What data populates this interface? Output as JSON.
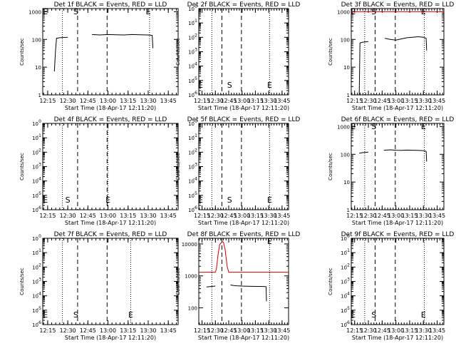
{
  "x_tick_labels": [
    "12:15",
    "12:30",
    "12:45",
    "13:00",
    "13:15",
    "13:30",
    "13:45"
  ],
  "xlabel": "Start Time (18-Apr-17 12:11:20)",
  "ylabel": "Counts/sec",
  "colors": {
    "events": "#000000",
    "lld": "#cc0000"
  },
  "chart_data": [
    {
      "type": "line",
      "title": "Det 1f BLACK = Events, RED = LLD",
      "xlabel": "Start Time (18-Apr-17 12:11:20)",
      "ylabel": "Counts/sec",
      "x_tick_labels": [
        "12:15",
        "12:30",
        "12:45",
        "13:00",
        "13:15",
        "13:30",
        "13:45"
      ],
      "xlim": [
        12.1889,
        13.8722
      ],
      "y_scale": "log",
      "y_ticks": [
        {
          "label": "1",
          "v": 1
        },
        {
          "label": "10",
          "v": 10
        },
        {
          "label": "100",
          "v": 100
        },
        {
          "label": "1000",
          "v": 1000
        }
      ],
      "ylim": [
        1,
        1300
      ],
      "markers": {
        "E": 12.2222,
        "S": 12.6,
        "E2": 13.5
      },
      "dotted": [
        12.4333,
        13.5167
      ],
      "dashed": [
        12.6222,
        12.9889
      ],
      "series": [
        {
          "name": "events",
          "color": "#000000",
          "segments": [
            [
              [
                12.3333,
                7
              ],
              [
                12.3467,
                35
              ],
              [
                12.36,
                110
              ],
              [
                12.4,
                115
              ],
              [
                12.45,
                118
              ],
              [
                12.5,
                120
              ]
            ],
            [
              [
                12.8,
                150
              ],
              [
                12.9,
                145
              ],
              [
                13.0,
                150
              ],
              [
                13.1,
                148
              ],
              [
                13.2,
                145
              ],
              [
                13.3,
                150
              ],
              [
                13.4,
                148
              ],
              [
                13.5,
                145
              ],
              [
                13.55,
                140
              ],
              [
                13.5583,
                48
              ]
            ]
          ]
        },
        {
          "name": "lld",
          "color": "#cc0000",
          "segments": []
        }
      ]
    },
    {
      "type": "line",
      "title": "Det 2f BLACK = Events, RED = LLD",
      "xlabel": "Start Time (18-Apr-17 12:11:20)",
      "ylabel": "Counts/sec",
      "x_tick_labels": [
        "12:15",
        "12:30",
        "12:45",
        "13:00",
        "13:15",
        "13:30",
        "13:45"
      ],
      "xlim": [
        12.1889,
        13.8722
      ],
      "y_scale": "log",
      "y_ticks": [
        {
          "label": "10",
          "sup": "0",
          "v": 1
        },
        {
          "label": "10",
          "sup": "-1",
          "v": 0.1
        },
        {
          "label": "10",
          "sup": "-2",
          "v": 0.01
        },
        {
          "label": "10",
          "sup": "-3",
          "v": 0.001
        },
        {
          "label": "10",
          "sup": "-4",
          "v": 0.0001
        },
        {
          "label": "10",
          "sup": "-5",
          "v": 1e-05
        },
        {
          "label": "10",
          "sup": "-6",
          "v": 1e-06
        }
      ],
      "ylim": [
        1e-06,
        1
      ],
      "markers": {
        "E": 12.2222,
        "S": 12.7667,
        "E2": 13.5167
      },
      "dotted": [
        12.4333,
        13.5167
      ],
      "dashed": [
        12.6222,
        12.9889
      ],
      "series": [
        {
          "name": "events",
          "color": "#000000",
          "segments": []
        },
        {
          "name": "lld",
          "color": "#cc0000",
          "segments": []
        }
      ]
    },
    {
      "type": "line",
      "title": "Det 3f BLACK = Events, RED = LLD",
      "xlabel": "Start Time (18-Apr-17 12:11:20)",
      "ylabel": "Counts/sec",
      "x_tick_labels": [
        "12:15",
        "12:30",
        "12:45",
        "13:00",
        "13:15",
        "13:30",
        "13:45"
      ],
      "xlim": [
        12.1889,
        13.8722
      ],
      "y_scale": "log",
      "y_ticks": [
        {
          "label": "1",
          "v": 1
        },
        {
          "label": "10",
          "v": 10
        },
        {
          "label": "100",
          "v": 100
        },
        {
          "label": "1000",
          "v": 1000
        }
      ],
      "ylim": [
        1,
        1300
      ],
      "markers": {
        "E": 12.2222,
        "S": 12.6,
        "E2": 13.5
      },
      "dotted": [
        12.4333,
        13.5167
      ],
      "dashed": [
        12.6222,
        12.9889
      ],
      "series": [
        {
          "name": "events",
          "color": "#000000",
          "segments": [
            [
              [
                12.3333,
                1
              ],
              [
                12.3467,
                75
              ],
              [
                12.4,
                80
              ],
              [
                12.45,
                82
              ],
              [
                12.5,
                84
              ]
            ],
            [
              [
                12.8,
                110
              ],
              [
                12.9,
                100
              ],
              [
                13.0,
                95
              ],
              [
                13.1,
                105
              ],
              [
                13.2,
                115
              ],
              [
                13.3,
                120
              ],
              [
                13.4,
                125
              ],
              [
                13.5,
                120
              ],
              [
                13.55,
                110
              ],
              [
                13.5583,
                40
              ]
            ]
          ]
        },
        {
          "name": "lld",
          "color": "#cc0000",
          "segments": [
            [
              [
                12.1889,
                1000
              ],
              [
                13.8722,
                1000
              ]
            ]
          ]
        }
      ]
    },
    {
      "type": "line",
      "title": "Det 4f BLACK = Events, RED = LLD",
      "xlabel": "Start Time (18-Apr-17 12:11:20)",
      "ylabel": "Counts/sec",
      "x_tick_labels": [
        "12:15",
        "12:30",
        "12:45",
        "13:00",
        "13:15",
        "13:30",
        "13:45"
      ],
      "xlim": [
        12.1889,
        13.8722
      ],
      "y_scale": "log",
      "y_ticks": [
        {
          "label": "10",
          "sup": "0",
          "v": 1
        },
        {
          "label": "10",
          "sup": "-1",
          "v": 0.1
        },
        {
          "label": "10",
          "sup": "-2",
          "v": 0.01
        },
        {
          "label": "10",
          "sup": "-3",
          "v": 0.001
        },
        {
          "label": "10",
          "sup": "-4",
          "v": 0.0001
        },
        {
          "label": "10",
          "sup": "-5",
          "v": 1e-05
        },
        {
          "label": "10",
          "sup": "-6",
          "v": 1e-06
        }
      ],
      "ylim": [
        1e-06,
        1
      ],
      "markers": {
        "E": 12.2222,
        "S": 12.5,
        "E2": 13.0
      },
      "dotted": [
        12.4333,
        13.0
      ],
      "dashed": [
        12.6222,
        12.9889
      ],
      "series": [
        {
          "name": "events",
          "color": "#000000",
          "segments": []
        },
        {
          "name": "lld",
          "color": "#cc0000",
          "segments": []
        }
      ]
    },
    {
      "type": "line",
      "title": "Det 5f BLACK = Events, RED = LLD",
      "xlabel": "Start Time (18-Apr-17 12:11:20)",
      "ylabel": "Counts/sec",
      "x_tick_labels": [
        "12:15",
        "12:30",
        "12:45",
        "13:00",
        "13:15",
        "13:30",
        "13:45"
      ],
      "xlim": [
        12.1889,
        13.8722
      ],
      "y_scale": "log",
      "y_ticks": [
        {
          "label": "10",
          "sup": "0",
          "v": 1
        },
        {
          "label": "10",
          "sup": "-1",
          "v": 0.1
        },
        {
          "label": "10",
          "sup": "-2",
          "v": 0.01
        },
        {
          "label": "10",
          "sup": "-3",
          "v": 0.001
        },
        {
          "label": "10",
          "sup": "-4",
          "v": 0.0001
        },
        {
          "label": "10",
          "sup": "-5",
          "v": 1e-05
        },
        {
          "label": "10",
          "sup": "-6",
          "v": 1e-06
        }
      ],
      "ylim": [
        1e-06,
        1
      ],
      "markers": {
        "E": 12.2222,
        "S": 12.7667,
        "E2": 13.5167
      },
      "dotted": [
        12.4333,
        13.5167
      ],
      "dashed": [
        12.6222,
        12.9889
      ],
      "series": [
        {
          "name": "events",
          "color": "#000000",
          "segments": []
        },
        {
          "name": "lld",
          "color": "#cc0000",
          "segments": []
        }
      ]
    },
    {
      "type": "line",
      "title": "Det 6f BLACK = Events, RED = LLD",
      "xlabel": "Start Time (18-Apr-17 12:11:20)",
      "ylabel": "Counts/sec",
      "x_tick_labels": [
        "12:15",
        "12:30",
        "12:45",
        "13:00",
        "13:15",
        "13:30",
        "13:45"
      ],
      "xlim": [
        12.1889,
        13.8722
      ],
      "y_scale": "log",
      "y_ticks": [
        {
          "label": "1",
          "v": 1
        },
        {
          "label": "10",
          "v": 10
        },
        {
          "label": "100",
          "v": 100
        },
        {
          "label": "1000",
          "v": 1000
        }
      ],
      "ylim": [
        1,
        1300
      ],
      "markers": {
        "E": 12.2222,
        "S": 12.6,
        "E2": 13.5
      },
      "dotted": [
        12.4333,
        13.5167
      ],
      "dashed": [
        12.6222,
        12.9889
      ],
      "series": [
        {
          "name": "events",
          "color": "#000000",
          "segments": [
            [
              [
                12.3333,
                110
              ],
              [
                12.4,
                115
              ],
              [
                12.45,
                118
              ],
              [
                12.5,
                120
              ]
            ],
            [
              [
                12.7833,
                140
              ],
              [
                12.9,
                145
              ],
              [
                13.0,
                140
              ],
              [
                13.1,
                138
              ],
              [
                13.2,
                142
              ],
              [
                13.3,
                140
              ],
              [
                13.4,
                138
              ],
              [
                13.5,
                135
              ],
              [
                13.55,
                128
              ],
              [
                13.5583,
                55
              ]
            ]
          ]
        },
        {
          "name": "lld",
          "color": "#cc0000",
          "segments": []
        }
      ]
    },
    {
      "type": "line",
      "title": "Det 7f BLACK = Events, RED = LLD",
      "xlabel": "Start Time (18-Apr-17 12:11:20)",
      "ylabel": "Counts/sec",
      "x_tick_labels": [
        "12:15",
        "12:30",
        "12:45",
        "13:00",
        "13:15",
        "13:30",
        "13:45"
      ],
      "xlim": [
        12.1889,
        13.8722
      ],
      "y_scale": "log",
      "y_ticks": [
        {
          "label": "10",
          "sup": "0",
          "v": 1
        },
        {
          "label": "10",
          "sup": "-1",
          "v": 0.1
        },
        {
          "label": "10",
          "sup": "-2",
          "v": 0.01
        },
        {
          "label": "10",
          "sup": "-3",
          "v": 0.001
        },
        {
          "label": "10",
          "sup": "-4",
          "v": 0.0001
        },
        {
          "label": "10",
          "sup": "-5",
          "v": 1e-05
        },
        {
          "label": "10",
          "sup": "-6",
          "v": 1e-06
        }
      ],
      "ylim": [
        1e-06,
        1
      ],
      "markers": {
        "E": 12.2222,
        "S": 12.6,
        "E2": 13.2833
      },
      "dotted": [
        12.4333,
        13.2833
      ],
      "dashed": [
        12.6222,
        12.9889
      ],
      "series": [
        {
          "name": "events",
          "color": "#000000",
          "segments": []
        },
        {
          "name": "lld",
          "color": "#cc0000",
          "segments": []
        }
      ]
    },
    {
      "type": "line",
      "title": "Det 8f BLACK = Events, RED = LLD",
      "xlabel": "Start Time (18-Apr-17 12:11:20)",
      "ylabel": "Counts/sec",
      "x_tick_labels": [
        "12:15",
        "12:30",
        "12:45",
        "13:00",
        "13:15",
        "13:30",
        "13:45"
      ],
      "xlim": [
        12.1889,
        13.8722
      ],
      "y_scale": "log",
      "y_ticks": [
        {
          "label": "100",
          "v": 100
        },
        {
          "label": "1000",
          "v": 1000
        },
        {
          "label": "10000",
          "v": 10000
        }
      ],
      "ylim": [
        30,
        15000
      ],
      "markers": {
        "E": 13.5167
      },
      "dotted": [
        12.4333,
        13.5167
      ],
      "dashed": [
        12.6222,
        12.9889
      ],
      "series": [
        {
          "name": "events",
          "color": "#000000",
          "segments": [
            [
              [
                12.3333,
                450
              ],
              [
                12.4,
                460
              ],
              [
                12.45,
                470
              ],
              [
                12.5,
                480
              ]
            ],
            [
              [
                12.7833,
                520
              ],
              [
                12.85,
                500
              ],
              [
                12.9,
                490
              ],
              [
                13.0,
                480
              ],
              [
                13.1,
                475
              ],
              [
                13.2,
                470
              ],
              [
                13.3,
                468
              ],
              [
                13.4,
                465
              ],
              [
                13.45,
                460
              ],
              [
                13.4583,
                160
              ]
            ]
          ]
        },
        {
          "name": "lld",
          "color": "#cc0000",
          "segments": [
            [
              [
                12.1889,
                1300
              ],
              [
                12.5,
                1300
              ],
              [
                12.52,
                1700
              ],
              [
                12.55,
                4500
              ],
              [
                12.58,
                9500
              ],
              [
                12.62,
                11500
              ],
              [
                12.65,
                11500
              ],
              [
                12.68,
                7000
              ],
              [
                12.72,
                2000
              ],
              [
                12.75,
                1300
              ],
              [
                13.8722,
                1300
              ]
            ]
          ]
        }
      ]
    },
    {
      "type": "line",
      "title": "Det 9f BLACK = Events, RED = LLD",
      "xlabel": "Start Time (18-Apr-17 12:11:20)",
      "ylabel": "Counts/sec",
      "x_tick_labels": [
        "12:15",
        "12:30",
        "12:45",
        "13:00",
        "13:15",
        "13:30",
        "13:45"
      ],
      "xlim": [
        12.1889,
        13.8722
      ],
      "y_scale": "log",
      "y_ticks": [
        {
          "label": "10",
          "sup": "0",
          "v": 1
        },
        {
          "label": "10",
          "sup": "-1",
          "v": 0.1
        },
        {
          "label": "10",
          "sup": "-2",
          "v": 0.01
        },
        {
          "label": "10",
          "sup": "-3",
          "v": 0.001
        },
        {
          "label": "10",
          "sup": "-4",
          "v": 0.0001
        },
        {
          "label": "10",
          "sup": "-5",
          "v": 1e-05
        },
        {
          "label": "10",
          "sup": "-6",
          "v": 1e-06
        }
      ],
      "ylim": [
        1e-06,
        1
      ],
      "markers": {
        "E": 12.2222,
        "S": 12.6,
        "E2": 13.5
      },
      "dotted": [
        12.4333,
        13.5167
      ],
      "dashed": [
        12.6222,
        12.9889
      ],
      "series": [
        {
          "name": "events",
          "color": "#000000",
          "segments": []
        },
        {
          "name": "lld",
          "color": "#cc0000",
          "segments": []
        }
      ]
    }
  ]
}
